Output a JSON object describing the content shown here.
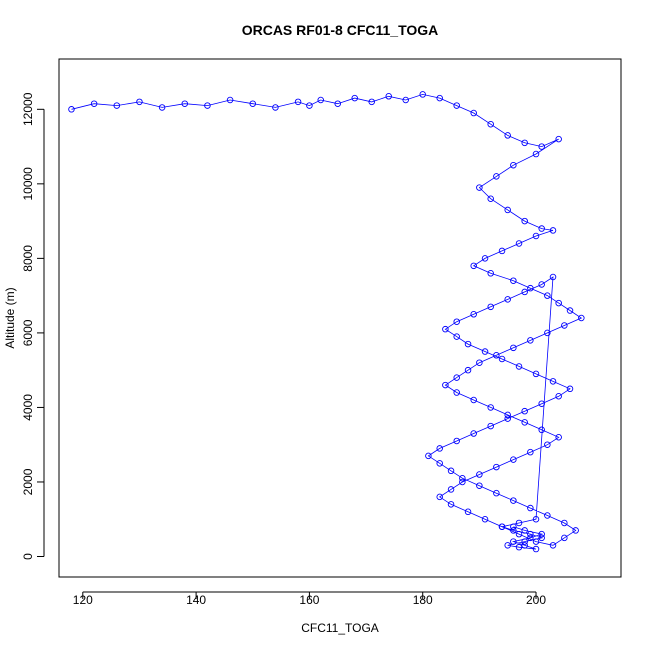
{
  "chart_data": {
    "type": "scatter",
    "title": "ORCAS RF01-8 CFC11_TOGA",
    "xlabel": "CFC11_TOGA",
    "ylabel": "Altitude (m)",
    "xlim": [
      115.8,
      215
    ],
    "ylim": [
      -550,
      13350
    ],
    "x_ticks": [
      120,
      140,
      160,
      180,
      200
    ],
    "y_ticks": [
      0,
      2000,
      4000,
      6000,
      8000,
      10000,
      12000
    ],
    "grid": false,
    "legend": "none",
    "marker": "open-circle",
    "connected": true,
    "color": "#0000FF",
    "series": [
      {
        "x": [
          118,
          122,
          126,
          130,
          134,
          138,
          142,
          146,
          150,
          154,
          158,
          160,
          162,
          165,
          168,
          171,
          174,
          177,
          180,
          183,
          186,
          189,
          192,
          195,
          198,
          201,
          204,
          200,
          196,
          193,
          190,
          192,
          195,
          198,
          201,
          203,
          200,
          197,
          194,
          191,
          189,
          192,
          196,
          199,
          202,
          204,
          206,
          208,
          205,
          202,
          199,
          196,
          193,
          190,
          188,
          186,
          184,
          186,
          189,
          192,
          195,
          198,
          201,
          204,
          202,
          199,
          196,
          193,
          190,
          187,
          185,
          183,
          185,
          188,
          191,
          194,
          197,
          200,
          203,
          205,
          207,
          205,
          202,
          199,
          196,
          193,
          190,
          187,
          185,
          183,
          181,
          183,
          186,
          189,
          192,
          195,
          198,
          201,
          204,
          206,
          203,
          200,
          197,
          194,
          191,
          188,
          186,
          184,
          186,
          189,
          192,
          195,
          198,
          201,
          203,
          200,
          197,
          194,
          196,
          199,
          201,
          198,
          195,
          197,
          200,
          198,
          196,
          199,
          201,
          198,
          196
        ],
        "y": [
          12000,
          12150,
          12100,
          12200,
          12050,
          12150,
          12100,
          12250,
          12150,
          12050,
          12200,
          12100,
          12250,
          12150,
          12300,
          12200,
          12350,
          12250,
          12400,
          12300,
          12100,
          11900,
          11600,
          11300,
          11100,
          11000,
          11200,
          10800,
          10500,
          10200,
          9900,
          9600,
          9300,
          9000,
          8800,
          8750,
          8600,
          8400,
          8200,
          8000,
          7800,
          7600,
          7400,
          7200,
          7000,
          6800,
          6600,
          6400,
          6200,
          6000,
          5800,
          5600,
          5400,
          5200,
          5000,
          4800,
          4600,
          4400,
          4200,
          4000,
          3800,
          3600,
          3400,
          3200,
          3000,
          2800,
          2600,
          2400,
          2200,
          2000,
          1800,
          1600,
          1400,
          1200,
          1000,
          800,
          600,
          400,
          300,
          500,
          700,
          900,
          1100,
          1300,
          1500,
          1700,
          1900,
          2100,
          2300,
          2500,
          2700,
          2900,
          3100,
          3300,
          3500,
          3700,
          3900,
          4100,
          4300,
          4500,
          4700,
          4900,
          5100,
          5300,
          5500,
          5700,
          5900,
          6100,
          6300,
          6500,
          6700,
          6900,
          7100,
          7300,
          7500,
          1000,
          900,
          800,
          700,
          600,
          500,
          400,
          300,
          250,
          200,
          300,
          400,
          500,
          600,
          700,
          800
        ]
      }
    ]
  }
}
